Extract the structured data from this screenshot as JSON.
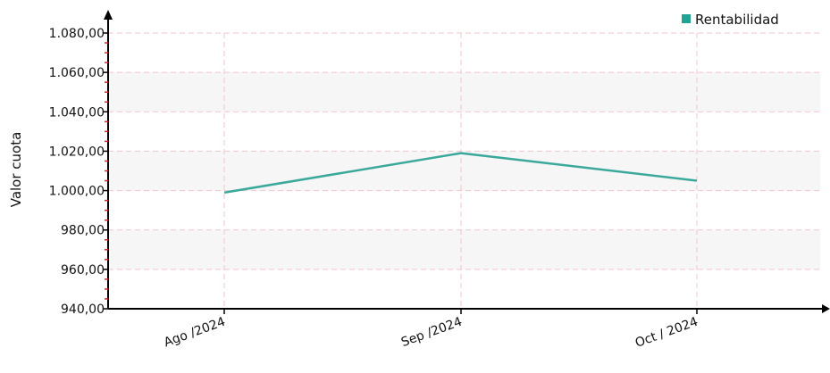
{
  "chart_data": {
    "type": "line",
    "ylabel": "Valor cuota",
    "xlabel": "",
    "title": "",
    "ylim": [
      940,
      1080
    ],
    "y_ticks": [
      940,
      960,
      980,
      1000,
      1020,
      1040,
      1060,
      1080
    ],
    "y_tick_labels": [
      "940,00",
      "960,00",
      "980,00",
      "1.000,00",
      "1.020,00",
      "1.040,00",
      "1.060,00",
      "1.080,00"
    ],
    "categories": [
      "Ago /2024",
      "Sep /2024",
      "Oct / 2024"
    ],
    "series": [
      {
        "name": "Rentabilidad",
        "values": [
          999,
          1019,
          1005
        ]
      }
    ],
    "legend_position": "top-right",
    "grid": true,
    "colors": {
      "series": "#3aa99b",
      "legend_swatch": "#1fa393",
      "grid": "#f2c4cd",
      "band": "#f6f6f6",
      "axis": "#000000",
      "minor_tick": "#e0202a"
    }
  }
}
